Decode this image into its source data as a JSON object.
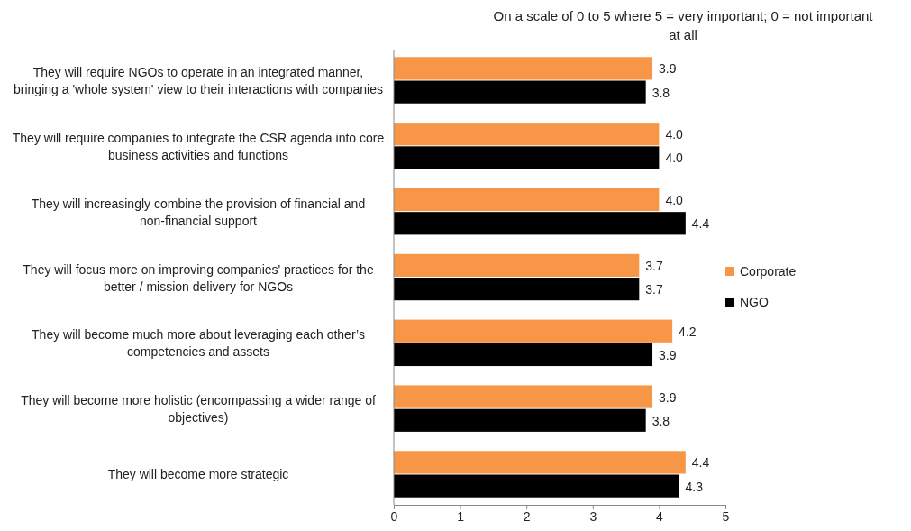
{
  "chart_data": {
    "type": "bar",
    "orientation": "horizontal",
    "title": "On a scale of 0 to 5 where 5 = very important; 0 = not important at all",
    "categories": [
      "They will require NGOs to operate in an integrated manner, bringing a 'whole system' view to their interactions with companies",
      "They will require companies to integrate the CSR agenda into core business activities and functions",
      "They will increasingly combine the provision of financial and non-financial support",
      "They will focus more on improving companies' practices for the better / mission delivery for NGOs",
      "They will become much more about leveraging each other’s competencies and assets",
      "They will become more holistic (encompassing a wider range of objectives)",
      "They will become more strategic"
    ],
    "series": [
      {
        "name": "Corporate",
        "color": "#f79646",
        "values": [
          3.9,
          4.0,
          4.0,
          3.7,
          4.2,
          3.9,
          4.4
        ],
        "value_labels": [
          "3.9",
          "4.0",
          "4.0",
          "3.7",
          "4.2",
          "3.9",
          "4.4"
        ]
      },
      {
        "name": "NGO",
        "color": "#000000",
        "values": [
          3.8,
          4.0,
          4.4,
          3.7,
          3.9,
          3.8,
          4.3
        ],
        "value_labels": [
          "3.8",
          "4.0",
          "4.4",
          "3.7",
          "3.9",
          "3.8",
          "4.3"
        ]
      }
    ],
    "xlim": [
      0,
      5
    ],
    "xticks": [
      0,
      1,
      2,
      3,
      4,
      5
    ],
    "grid": false,
    "legend": "right"
  }
}
